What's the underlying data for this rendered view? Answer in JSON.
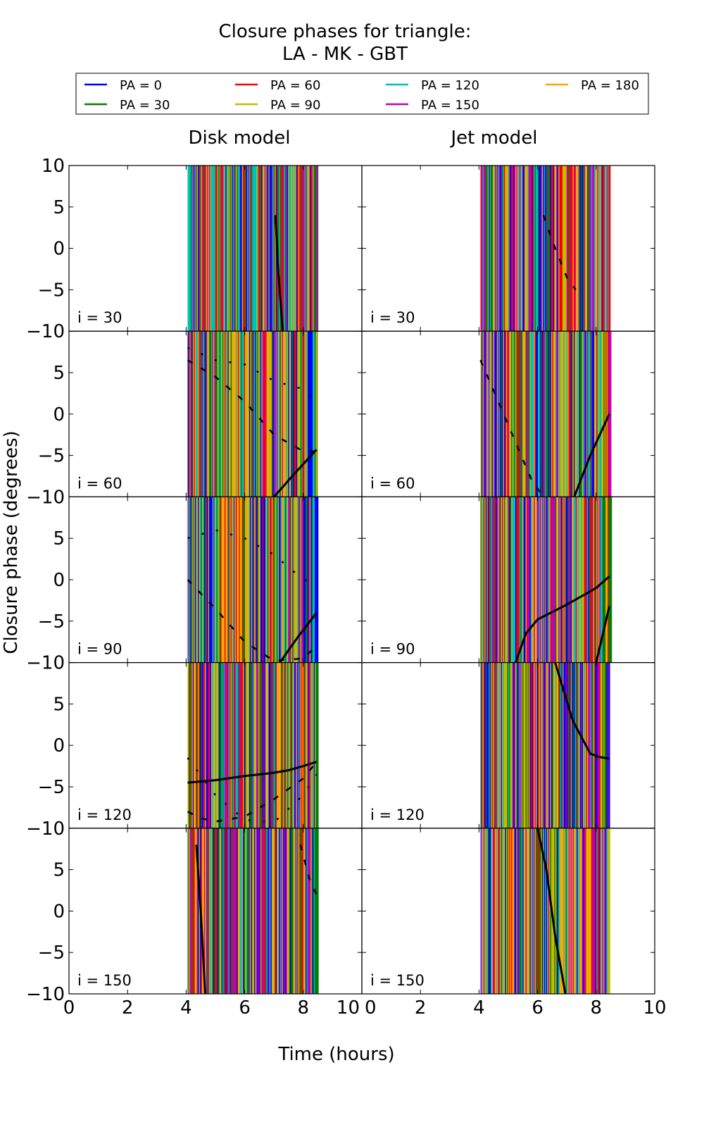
{
  "chart_data": {
    "type": "line",
    "title": [
      "Closure phases for triangle:",
      "LA - MK - GBT"
    ],
    "xlabel": "Time (hours)",
    "ylabel": "Closure phase (degrees)",
    "xlim": [
      0,
      10
    ],
    "ylim": [
      -10,
      10
    ],
    "xticks": [
      0,
      2,
      4,
      6,
      8,
      10
    ],
    "yticks": [
      10,
      5,
      0,
      -5,
      -10
    ],
    "columns": [
      "Disk model",
      "Jet model"
    ],
    "rows": [
      "i = 30",
      "i = 60",
      "i = 90",
      "i = 120",
      "i = 150"
    ],
    "legend_position": "top",
    "legend": [
      {
        "label": "PA = 0",
        "color": "#0000ff"
      },
      {
        "label": "PA = 30",
        "color": "#008000"
      },
      {
        "label": "PA = 60",
        "color": "#ff0000"
      },
      {
        "label": "PA = 90",
        "color": "#bfbf00"
      },
      {
        "label": "PA = 120",
        "color": "#00bfbf"
      },
      {
        "label": "PA = 150",
        "color": "#bf00bf"
      },
      {
        "label": "PA = 180",
        "color": "#ffa500"
      }
    ],
    "data_time_range": [
      4.05,
      8.45
    ],
    "panels": [
      {
        "column": "Disk model",
        "row": "i = 30",
        "curves": [
          {
            "style": "solid",
            "x": [
              7.05,
              7.15,
              7.3
            ],
            "y": [
              4,
              -3,
              -10
            ]
          }
        ]
      },
      {
        "column": "Jet model",
        "row": "i = 30",
        "curves": [
          {
            "style": "dashed",
            "x": [
              6.2,
              6.6,
              7.0,
              7.3
            ],
            "y": [
              4,
              0,
              -3.5,
              -5
            ]
          }
        ]
      },
      {
        "column": "Disk model",
        "row": "i = 60",
        "curves": [
          {
            "style": "solid",
            "x": [
              7.0,
              7.7,
              8.45
            ],
            "y": [
              -10,
              -7.2,
              -4.3
            ]
          },
          {
            "style": "dashed",
            "x": [
              4.05,
              5.0,
              6.0,
              7.0,
              8.0,
              8.45
            ],
            "y": [
              6.5,
              4.5,
              1.5,
              -2.5,
              -4.5,
              -4.5
            ]
          },
          {
            "style": "dotted",
            "x": [
              4.05,
              5.0,
              6.0,
              7.0,
              8.0,
              8.45
            ],
            "y": [
              8,
              6.5,
              6,
              4,
              3,
              1.5
            ]
          }
        ]
      },
      {
        "column": "Jet model",
        "row": "i = 60",
        "curves": [
          {
            "style": "solid",
            "x": [
              7.25,
              7.8,
              8.45
            ],
            "y": [
              -10,
              -5,
              0
            ]
          },
          {
            "style": "dashed",
            "x": [
              4.05,
              4.6,
              5.2,
              5.8,
              6.2
            ],
            "y": [
              6.5,
              2,
              -3,
              -8,
              -10
            ]
          }
        ]
      },
      {
        "column": "Disk model",
        "row": "i = 90",
        "curves": [
          {
            "style": "solid",
            "x": [
              7.2,
              7.8,
              8.45
            ],
            "y": [
              -10,
              -7,
              -4
            ]
          },
          {
            "style": "dashed",
            "x": [
              4.05,
              5.0,
              6.0,
              7.0,
              8.0,
              8.45
            ],
            "y": [
              0,
              -3.5,
              -7.5,
              -9.8,
              -9.5,
              -8
            ]
          },
          {
            "style": "dotted",
            "x": [
              4.05,
              5.0,
              6.0,
              7.0,
              8.0,
              8.45
            ],
            "y": [
              5,
              6,
              5,
              3,
              0,
              -0.5
            ]
          }
        ]
      },
      {
        "column": "Jet model",
        "row": "i = 90",
        "curves": [
          {
            "style": "solid",
            "x": [
              5.25,
              5.6,
              6.0,
              7.0,
              8.0,
              8.45
            ],
            "y": [
              -10,
              -6.5,
              -4.8,
              -3,
              -1,
              0.4
            ]
          },
          {
            "style": "solid",
            "x": [
              8.0,
              8.2,
              8.45
            ],
            "y": [
              -10,
              -7,
              -3.2
            ]
          }
        ]
      },
      {
        "column": "Disk model",
        "row": "i = 120",
        "curves": [
          {
            "style": "solid",
            "x": [
              4.05,
              5.0,
              6.0,
              7.0,
              7.5,
              8.0,
              8.45
            ],
            "y": [
              -4.5,
              -4.2,
              -3.7,
              -3.3,
              -3.0,
              -2.5,
              -2
            ]
          },
          {
            "style": "dashed",
            "x": [
              4.05,
              4.5,
              5.0,
              6.0,
              7.0,
              8.0,
              8.45
            ],
            "y": [
              -8,
              -8.8,
              -9.2,
              -8.6,
              -6.5,
              -4,
              -2
            ]
          },
          {
            "style": "dotted",
            "x": [
              4.05,
              5.0,
              6.0,
              7.0,
              8.0,
              8.45
            ],
            "y": [
              -1.5,
              -6,
              -9,
              -9.3,
              -6,
              -3.5
            ]
          }
        ]
      },
      {
        "column": "Jet model",
        "row": "i = 120",
        "curves": [
          {
            "style": "solid",
            "x": [
              6.6,
              7.2,
              7.8,
              8.1,
              8.45
            ],
            "y": [
              10,
              3,
              -1,
              -1.4,
              -1.6
            ]
          }
        ]
      },
      {
        "column": "Disk model",
        "row": "i = 150",
        "curves": [
          {
            "style": "solid",
            "x": [
              4.35,
              4.5,
              4.65
            ],
            "y": [
              8,
              0,
              -10
            ]
          },
          {
            "style": "dashed",
            "x": [
              7.9,
              8.2,
              8.45
            ],
            "y": [
              8,
              4,
              2
            ]
          }
        ]
      },
      {
        "column": "Jet model",
        "row": "i = 150",
        "curves": [
          {
            "style": "solid",
            "x": [
              6.0,
              6.3,
              6.6,
              6.95
            ],
            "y": [
              10,
              5,
              -3,
              -10
            ]
          }
        ]
      }
    ]
  }
}
